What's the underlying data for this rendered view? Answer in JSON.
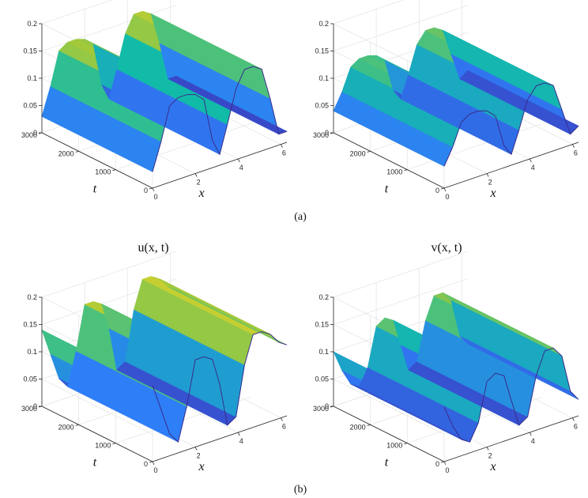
{
  "figure": {
    "caption_a": "(a)",
    "caption_b": "(b)",
    "label_u": "u(x, t)",
    "label_v": "v(x, t)"
  },
  "chart_data": [
    {
      "type": "surface",
      "id": "a-u",
      "xlabel": "x",
      "ylabel": "t",
      "xlim": [
        0,
        6.28
      ],
      "ylim": [
        0,
        3000
      ],
      "zlim": [
        0,
        0.2
      ],
      "xticks": [
        0,
        2,
        4,
        6
      ],
      "yticks": [
        0,
        1000,
        2000,
        3000
      ],
      "zticks": [
        0,
        0.05,
        0.1,
        0.15,
        0.2
      ],
      "grid": true,
      "profile_x": [
        0,
        0.4,
        0.8,
        1.2,
        1.6,
        2.0,
        2.4,
        2.8,
        3.14,
        3.5,
        3.9,
        4.3,
        4.7,
        5.1,
        5.5,
        5.9,
        6.28
      ],
      "profile_z": [
        0.03,
        0.08,
        0.14,
        0.15,
        0.15,
        0.145,
        0.13,
        0.05,
        0.02,
        0.07,
        0.13,
        0.16,
        0.16,
        0.15,
        0.09,
        0.02,
        0.02
      ]
    },
    {
      "type": "surface",
      "id": "a-v",
      "xlabel": "x",
      "ylabel": "t",
      "xlim": [
        0,
        6.28
      ],
      "ylim": [
        0,
        3000
      ],
      "zlim": [
        0,
        0.2
      ],
      "xticks": [
        0,
        2,
        4,
        6
      ],
      "yticks": [
        0,
        1000,
        2000,
        3000
      ],
      "zticks": [
        0,
        0.05,
        0.1,
        0.15,
        0.2
      ],
      "grid": true,
      "profile_x": [
        0,
        0.4,
        0.8,
        1.2,
        1.6,
        2.0,
        2.4,
        2.8,
        3.14,
        3.5,
        3.9,
        4.3,
        4.7,
        5.1,
        5.5,
        5.9,
        6.28
      ],
      "profile_z": [
        0.04,
        0.07,
        0.11,
        0.12,
        0.12,
        0.115,
        0.1,
        0.04,
        0.02,
        0.06,
        0.11,
        0.13,
        0.13,
        0.12,
        0.07,
        0.02,
        0.03
      ]
    },
    {
      "type": "surface",
      "id": "b-u",
      "xlabel": "x",
      "ylabel": "t",
      "xlim": [
        0,
        6.28
      ],
      "ylim": [
        0,
        3000
      ],
      "zlim": [
        0,
        0.2
      ],
      "xticks": [
        0,
        2,
        4,
        6
      ],
      "yticks": [
        0,
        1000,
        2000,
        3000
      ],
      "zticks": [
        0,
        0.05,
        0.1,
        0.15,
        0.2
      ],
      "grid": true,
      "profile_x": [
        0,
        0.4,
        0.8,
        1.2,
        1.6,
        2.0,
        2.4,
        2.8,
        3.14,
        3.5,
        3.9,
        4.3,
        4.7,
        5.1,
        5.5,
        5.9,
        6.28
      ],
      "profile_z": [
        0.14,
        0.09,
        0.04,
        0.02,
        0.08,
        0.16,
        0.16,
        0.15,
        0.1,
        0.02,
        0.03,
        0.12,
        0.17,
        0.17,
        0.16,
        0.14,
        0.13
      ]
    },
    {
      "type": "surface",
      "id": "b-v",
      "xlabel": "x",
      "ylabel": "t",
      "xlim": [
        0,
        6.28
      ],
      "ylim": [
        0,
        3000
      ],
      "zlim": [
        0,
        0.2
      ],
      "xticks": [
        0,
        2,
        4,
        6
      ],
      "yticks": [
        0,
        1000,
        2000,
        3000
      ],
      "zticks": [
        0,
        0.05,
        0.1,
        0.15,
        0.2
      ],
      "grid": true,
      "profile_x": [
        0,
        0.4,
        0.8,
        1.2,
        1.6,
        2.0,
        2.4,
        2.8,
        3.14,
        3.5,
        3.9,
        4.3,
        4.7,
        5.1,
        5.5,
        5.9,
        6.28
      ],
      "profile_z": [
        0.1,
        0.06,
        0.03,
        0.02,
        0.05,
        0.12,
        0.13,
        0.12,
        0.07,
        0.02,
        0.03,
        0.1,
        0.14,
        0.14,
        0.12,
        0.05,
        0.03
      ]
    }
  ]
}
